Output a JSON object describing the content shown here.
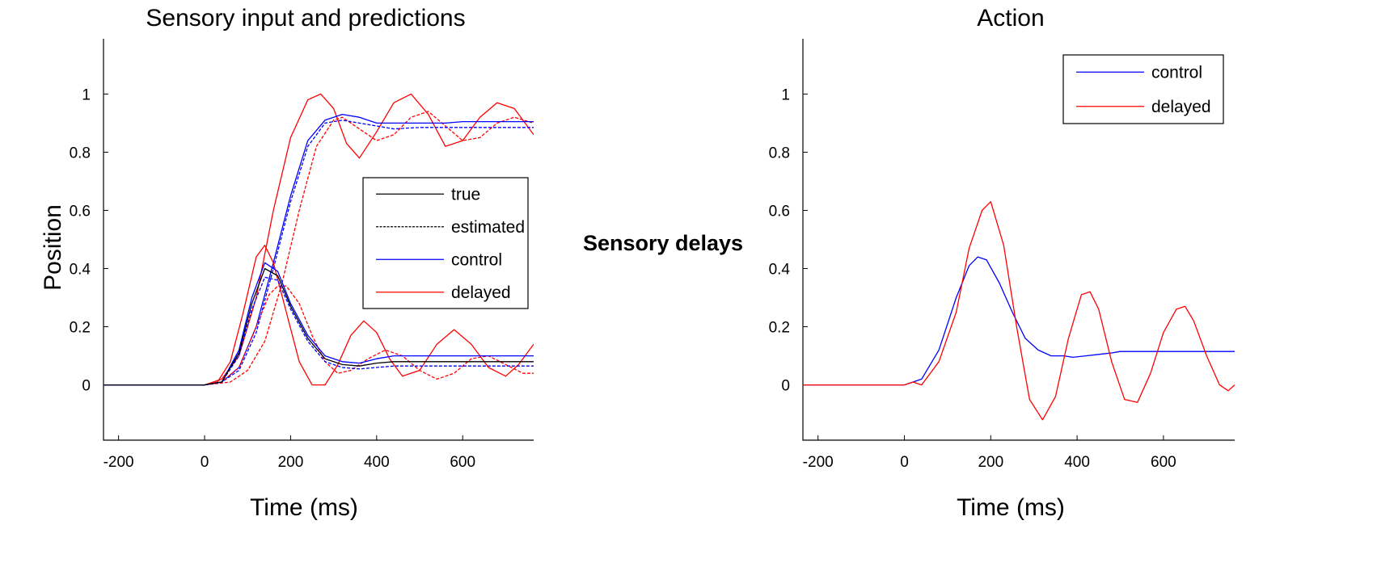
{
  "center_label": "Sensory delays",
  "colors": {
    "true": "#000000",
    "control": "#0000ff",
    "delayed": "#ff0000"
  },
  "chart_data": [
    {
      "type": "line",
      "title": "Sensory input and predictions",
      "xlabel": "Time (ms)",
      "ylabel": "Position",
      "xlim": [
        -235,
        765
      ],
      "ylim": [
        -0.19,
        1.19
      ],
      "xticks": [
        -200,
        0,
        200,
        400,
        600
      ],
      "yticks": [
        0,
        0.2,
        0.4,
        0.6,
        0.8,
        1
      ],
      "ytick_labels": [
        "0",
        "0.2",
        "0.4",
        "0.6",
        "0.8",
        "1"
      ],
      "grid": false,
      "legend": {
        "placement": "center-right",
        "entries": [
          {
            "label": "true",
            "color": "#000000",
            "style": "solid"
          },
          {
            "label": "estimated",
            "color": "#000000",
            "style": "dashed"
          },
          {
            "label": "control",
            "color": "#0000ff",
            "style": "solid"
          },
          {
            "label": "delayed",
            "color": "#ff0000",
            "style": "solid"
          }
        ]
      },
      "series": [
        {
          "color": "#ff0000",
          "style": "solid",
          "x": [
            -235,
            0,
            40,
            80,
            120,
            160,
            200,
            240,
            270,
            300,
            330,
            360,
            400,
            440,
            480,
            520,
            560,
            600,
            640,
            680,
            720,
            765
          ],
          "y": [
            0,
            0,
            0.02,
            0.1,
            0.3,
            0.6,
            0.85,
            0.98,
            1.0,
            0.95,
            0.83,
            0.78,
            0.87,
            0.97,
            1.0,
            0.93,
            0.82,
            0.84,
            0.92,
            0.97,
            0.95,
            0.86
          ]
        },
        {
          "color": "#ff0000",
          "style": "dashed",
          "x": [
            -235,
            0,
            60,
            100,
            140,
            180,
            220,
            260,
            300,
            320,
            360,
            400,
            440,
            480,
            520,
            560,
            600,
            640,
            680,
            720,
            765
          ],
          "y": [
            0,
            0,
            0.01,
            0.05,
            0.15,
            0.35,
            0.6,
            0.82,
            0.91,
            0.92,
            0.88,
            0.84,
            0.86,
            0.92,
            0.94,
            0.89,
            0.84,
            0.85,
            0.9,
            0.92,
            0.9
          ]
        },
        {
          "color": "#0000ff",
          "style": "solid",
          "x": [
            -235,
            0,
            40,
            80,
            120,
            160,
            200,
            240,
            280,
            320,
            360,
            400,
            440,
            500,
            560,
            600,
            650,
            700,
            765
          ],
          "y": [
            0,
            0,
            0.01,
            0.06,
            0.2,
            0.42,
            0.65,
            0.84,
            0.91,
            0.93,
            0.92,
            0.9,
            0.9,
            0.9,
            0.9,
            0.905,
            0.905,
            0.905,
            0.905
          ]
        },
        {
          "color": "#0000ff",
          "style": "dashed",
          "x": [
            -235,
            0,
            40,
            80,
            120,
            160,
            200,
            240,
            280,
            320,
            360,
            400,
            440,
            500,
            560,
            600,
            650,
            700,
            765
          ],
          "y": [
            0,
            0,
            0.01,
            0.05,
            0.18,
            0.4,
            0.63,
            0.82,
            0.9,
            0.91,
            0.9,
            0.89,
            0.88,
            0.885,
            0.885,
            0.885,
            0.885,
            0.885,
            0.885
          ]
        },
        {
          "color": "#ff0000",
          "style": "solid",
          "x": [
            -235,
            0,
            30,
            60,
            90,
            120,
            140,
            160,
            190,
            220,
            250,
            280,
            310,
            340,
            370,
            400,
            430,
            460,
            500,
            540,
            580,
            620,
            660,
            700,
            730,
            765
          ],
          "y": [
            0,
            0,
            0.01,
            0.08,
            0.25,
            0.44,
            0.48,
            0.42,
            0.25,
            0.08,
            0.0,
            0.0,
            0.07,
            0.17,
            0.22,
            0.18,
            0.09,
            0.03,
            0.05,
            0.14,
            0.19,
            0.14,
            0.06,
            0.03,
            0.07,
            0.14
          ]
        },
        {
          "color": "#ff0000",
          "style": "dashed",
          "x": [
            -235,
            0,
            40,
            80,
            120,
            150,
            170,
            190,
            220,
            250,
            280,
            310,
            340,
            380,
            420,
            460,
            500,
            540,
            580,
            620,
            660,
            700,
            740,
            765
          ],
          "y": [
            0,
            0,
            0.01,
            0.06,
            0.2,
            0.31,
            0.34,
            0.34,
            0.28,
            0.17,
            0.08,
            0.04,
            0.05,
            0.09,
            0.12,
            0.1,
            0.05,
            0.02,
            0.04,
            0.09,
            0.1,
            0.07,
            0.04,
            0.04
          ]
        },
        {
          "color": "#0000ff",
          "style": "solid",
          "x": [
            -235,
            0,
            40,
            80,
            110,
            140,
            170,
            200,
            240,
            280,
            320,
            360,
            400,
            440,
            500,
            560,
            600,
            650,
            700,
            765
          ],
          "y": [
            0,
            0,
            0.01,
            0.12,
            0.3,
            0.42,
            0.39,
            0.28,
            0.17,
            0.1,
            0.08,
            0.075,
            0.09,
            0.1,
            0.1,
            0.1,
            0.1,
            0.1,
            0.1,
            0.1
          ]
        },
        {
          "color": "#0000ff",
          "style": "dashed",
          "x": [
            -235,
            0,
            40,
            80,
            110,
            140,
            170,
            200,
            240,
            280,
            320,
            360,
            400,
            440,
            500,
            560,
            600,
            650,
            700,
            765
          ],
          "y": [
            0,
            0,
            0.01,
            0.1,
            0.26,
            0.37,
            0.36,
            0.26,
            0.15,
            0.08,
            0.06,
            0.055,
            0.06,
            0.065,
            0.065,
            0.065,
            0.065,
            0.065,
            0.065,
            0.065
          ]
        },
        {
          "color": "#000000",
          "style": "solid",
          "x": [
            -235,
            0,
            40,
            80,
            110,
            140,
            170,
            200,
            240,
            280,
            320,
            360,
            400,
            440,
            500,
            560,
            600,
            650,
            700,
            765
          ],
          "y": [
            0,
            0,
            0.01,
            0.11,
            0.28,
            0.4,
            0.375,
            0.27,
            0.16,
            0.09,
            0.07,
            0.065,
            0.075,
            0.08,
            0.08,
            0.08,
            0.08,
            0.08,
            0.08,
            0.08
          ]
        }
      ]
    },
    {
      "type": "line",
      "title": "Action",
      "xlabel": "Time (ms)",
      "ylabel": "",
      "xlim": [
        -235,
        765
      ],
      "ylim": [
        -0.19,
        1.19
      ],
      "xticks": [
        -200,
        0,
        200,
        400,
        600
      ],
      "yticks": [
        0,
        0.2,
        0.4,
        0.6,
        0.8,
        1
      ],
      "ytick_labels": [
        "0",
        "0.2",
        "0.4",
        "0.6",
        "0.8",
        "1"
      ],
      "grid": false,
      "legend": {
        "placement": "top-right",
        "entries": [
          {
            "label": "control",
            "color": "#0000ff",
            "style": "solid"
          },
          {
            "label": "delayed",
            "color": "#ff0000",
            "style": "solid"
          }
        ]
      },
      "series": [
        {
          "name": "control",
          "color": "#0000ff",
          "style": "solid",
          "x": [
            -235,
            0,
            40,
            80,
            120,
            150,
            170,
            190,
            220,
            250,
            280,
            310,
            340,
            370,
            390,
            420,
            450,
            480,
            500,
            550,
            600,
            700,
            765
          ],
          "y": [
            0,
            0,
            0.02,
            0.12,
            0.3,
            0.41,
            0.44,
            0.43,
            0.35,
            0.25,
            0.16,
            0.12,
            0.1,
            0.1,
            0.095,
            0.1,
            0.105,
            0.11,
            0.115,
            0.115,
            0.115,
            0.115,
            0.115
          ]
        },
        {
          "name": "delayed",
          "color": "#ff0000",
          "style": "solid",
          "x": [
            -235,
            0,
            20,
            40,
            80,
            120,
            150,
            180,
            200,
            230,
            260,
            290,
            320,
            350,
            380,
            410,
            430,
            450,
            480,
            510,
            540,
            570,
            600,
            630,
            650,
            670,
            700,
            730,
            750,
            765
          ],
          "y": [
            0,
            0,
            0.01,
            0.0,
            0.08,
            0.25,
            0.47,
            0.6,
            0.63,
            0.48,
            0.2,
            -0.05,
            -0.12,
            -0.04,
            0.16,
            0.31,
            0.32,
            0.26,
            0.08,
            -0.05,
            -0.06,
            0.04,
            0.18,
            0.26,
            0.27,
            0.22,
            0.1,
            0.0,
            -0.02,
            0.0
          ]
        }
      ]
    }
  ]
}
